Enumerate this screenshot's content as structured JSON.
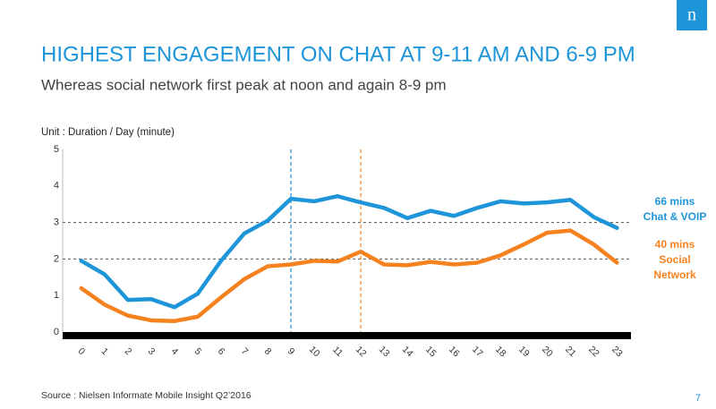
{
  "logo": "n",
  "chart_data": {
    "type": "line",
    "title": "HIGHEST ENGAGEMENT ON CHAT AT 9-11 AM AND 6-9 PM",
    "subtitle": "Whereas social network first peak at noon and again 8-9 pm",
    "y_label": "Unit : Duration / Day (minute)",
    "source": "Source : Nielsen  Informate Mobile Insight Q2’2016",
    "page_number": "7",
    "x": [
      0,
      1,
      2,
      3,
      4,
      5,
      6,
      7,
      8,
      9,
      10,
      11,
      12,
      13,
      14,
      15,
      16,
      17,
      18,
      19,
      20,
      21,
      22,
      23
    ],
    "xlim": [
      -0.8,
      23.6
    ],
    "xticks": [
      0,
      1,
      2,
      3,
      4,
      5,
      6,
      7,
      8,
      9,
      10,
      11,
      12,
      13,
      14,
      15,
      16,
      17,
      18,
      19,
      20,
      21,
      22,
      23
    ],
    "ylim": [
      0,
      5
    ],
    "yticks": [
      0,
      1,
      2,
      3,
      4,
      5
    ],
    "hlines": [
      3,
      2
    ],
    "vlines": [
      {
        "x": 9,
        "color": "#1e8fd5"
      },
      {
        "x": 12,
        "color": "#f5821f"
      }
    ],
    "series": [
      {
        "name": "Chat & VOIP",
        "label": "66 mins",
        "color": "#1e95d9",
        "values": [
          1.95,
          1.58,
          0.88,
          0.9,
          0.68,
          1.05,
          1.95,
          2.7,
          3.05,
          3.65,
          3.58,
          3.72,
          3.55,
          3.4,
          3.12,
          3.32,
          3.18,
          3.4,
          3.58,
          3.52,
          3.55,
          3.62,
          3.15,
          2.85
        ]
      },
      {
        "name": "Social Network",
        "label": "40 mins",
        "color": "#f5821f",
        "values": [
          1.2,
          0.75,
          0.45,
          0.32,
          0.3,
          0.42,
          0.95,
          1.45,
          1.8,
          1.85,
          1.95,
          1.93,
          2.2,
          1.85,
          1.83,
          1.92,
          1.85,
          1.9,
          2.1,
          2.4,
          2.72,
          2.78,
          2.4,
          1.9
        ]
      }
    ]
  }
}
